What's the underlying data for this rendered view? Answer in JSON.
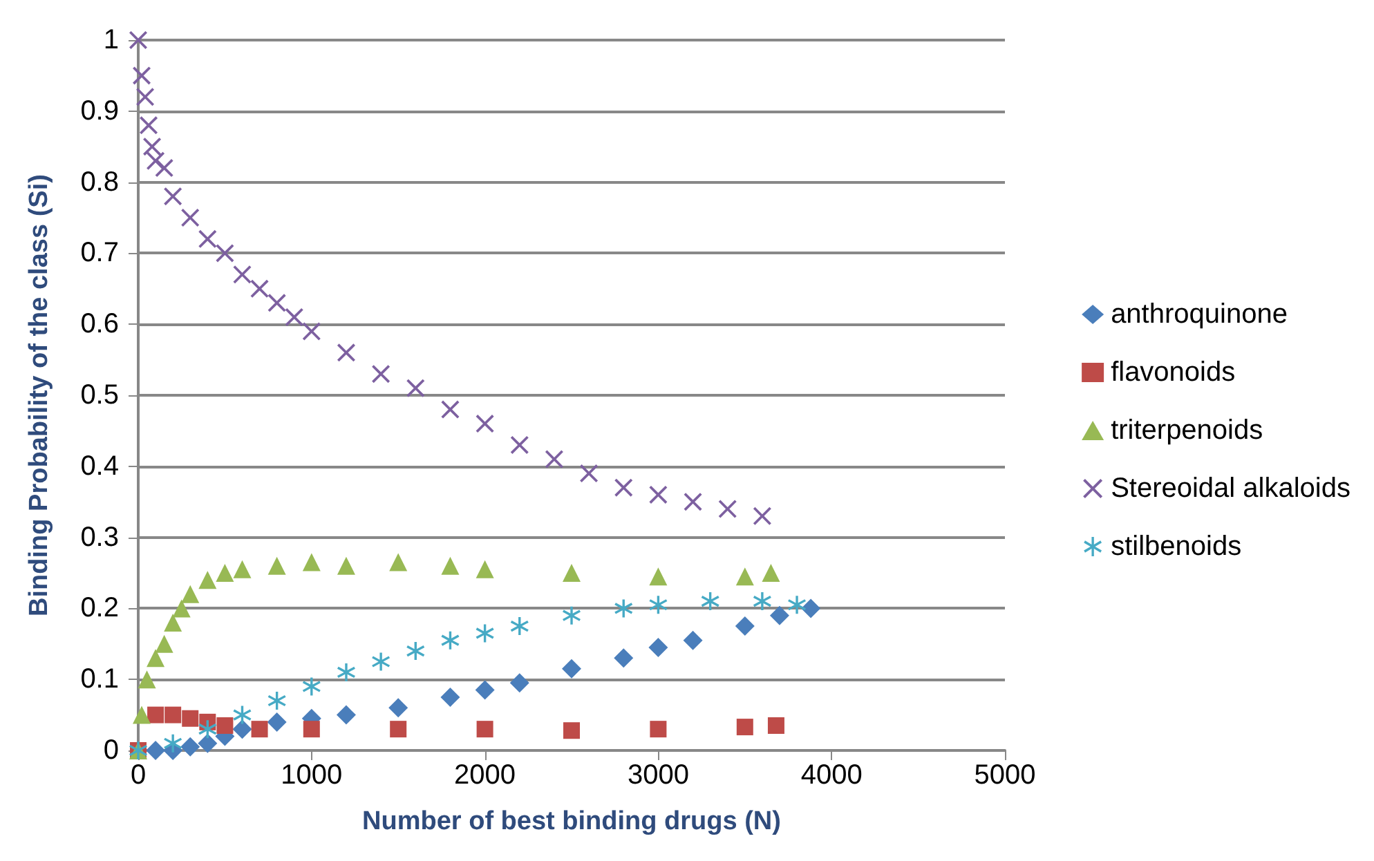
{
  "chart_data": {
    "type": "scatter",
    "xlabel": "Number of best binding drugs (N)",
    "ylabel": "Binding Probability of the class (Si)",
    "xlim": [
      0,
      5000
    ],
    "xticks": [
      0,
      1000,
      2000,
      3000,
      4000,
      5000
    ],
    "ylim": [
      0,
      1
    ],
    "yticks": [
      0,
      0.1,
      0.2,
      0.3,
      0.4,
      0.5,
      0.6,
      0.7,
      0.8,
      0.9,
      1
    ],
    "grid": "y",
    "legend": "right",
    "series": [
      {
        "name": "anthroquinone",
        "color": "#4a7ebb",
        "marker": "diamond",
        "x": [
          100,
          200,
          300,
          400,
          500,
          600,
          800,
          1000,
          1200,
          1500,
          1800,
          2000,
          2200,
          2500,
          2800,
          3000,
          3200,
          3500,
          3700,
          3880
        ],
        "values": [
          0,
          0,
          0.005,
          0.01,
          0.02,
          0.03,
          0.04,
          0.045,
          0.05,
          0.06,
          0.075,
          0.085,
          0.095,
          0.115,
          0.13,
          0.145,
          0.155,
          0.175,
          0.19,
          0.2
        ]
      },
      {
        "name": "flavonoids",
        "color": "#be4b48",
        "marker": "square",
        "x": [
          0,
          100,
          200,
          300,
          400,
          500,
          700,
          1000,
          1500,
          2000,
          2500,
          3000,
          3500,
          3680
        ],
        "values": [
          0,
          0.05,
          0.05,
          0.045,
          0.04,
          0.035,
          0.03,
          0.03,
          0.03,
          0.03,
          0.028,
          0.03,
          0.033,
          0.035
        ]
      },
      {
        "name": "triterpenoids",
        "color": "#98b954",
        "marker": "triangle",
        "x": [
          0,
          20,
          50,
          100,
          150,
          200,
          250,
          300,
          400,
          500,
          600,
          800,
          1000,
          1200,
          1500,
          1800,
          2000,
          2500,
          3000,
          3500,
          3650
        ],
        "values": [
          0,
          0.05,
          0.1,
          0.13,
          0.15,
          0.18,
          0.2,
          0.22,
          0.24,
          0.25,
          0.255,
          0.26,
          0.265,
          0.26,
          0.265,
          0.26,
          0.255,
          0.25,
          0.245,
          0.245,
          0.25
        ]
      },
      {
        "name": "Stereoidal alkaloids",
        "color": "#7d60a0",
        "marker": "cross",
        "x": [
          0,
          20,
          40,
          60,
          80,
          100,
          150,
          200,
          300,
          400,
          500,
          600,
          700,
          800,
          900,
          1000,
          1200,
          1400,
          1600,
          1800,
          2000,
          2200,
          2400,
          2600,
          2800,
          3000,
          3200,
          3400,
          3600
        ],
        "values": [
          1,
          0.95,
          0.92,
          0.88,
          0.85,
          0.83,
          0.82,
          0.78,
          0.75,
          0.72,
          0.7,
          0.67,
          0.65,
          0.63,
          0.61,
          0.59,
          0.56,
          0.53,
          0.51,
          0.48,
          0.46,
          0.43,
          0.41,
          0.39,
          0.37,
          0.36,
          0.35,
          0.34,
          0.33
        ]
      },
      {
        "name": "stilbenoids",
        "color": "#46aac5",
        "marker": "star",
        "x": [
          0,
          200,
          400,
          600,
          800,
          1000,
          1200,
          1400,
          1600,
          1800,
          2000,
          2200,
          2500,
          2800,
          3000,
          3300,
          3600,
          3800
        ],
        "values": [
          0,
          0.01,
          0.03,
          0.05,
          0.07,
          0.09,
          0.11,
          0.125,
          0.14,
          0.155,
          0.165,
          0.175,
          0.19,
          0.2,
          0.205,
          0.21,
          0.21,
          0.205
        ]
      }
    ]
  }
}
